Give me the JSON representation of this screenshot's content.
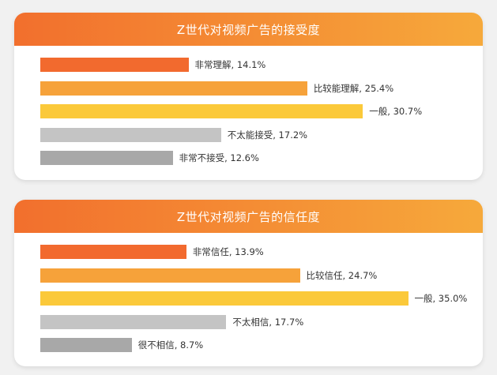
{
  "chart_data": [
    {
      "type": "bar",
      "orientation": "horizontal",
      "title": "Z世代对视频广告的接受度",
      "categories": [
        "非常理解",
        "比较能理解",
        "一般",
        "不太能接受",
        "非常不接受"
      ],
      "values": [
        14.1,
        25.4,
        30.7,
        17.2,
        12.6
      ],
      "labels": [
        "非常理解, 14.1%",
        "比较能理解, 25.4%",
        "一般, 30.7%",
        "不太能接受, 17.2%",
        "非常不接受, 12.6%"
      ],
      "colors": [
        "#f26a2e",
        "#f6a23a",
        "#fbc93a",
        "#c4c4c4",
        "#a8a8a8"
      ],
      "unit": "%",
      "legend": "none",
      "grid": false
    },
    {
      "type": "bar",
      "orientation": "horizontal",
      "title": "Z世代对视频广告的信任度",
      "categories": [
        "非常信任",
        "比较信任",
        "一般",
        "不太相信",
        "很不相信"
      ],
      "values": [
        13.9,
        24.7,
        35.0,
        17.7,
        8.7
      ],
      "labels": [
        "非常信任, 13.9%",
        "比较信任, 24.7%",
        "一般, 35.0%",
        "不太相信, 17.7%",
        "很不相信, 8.7%"
      ],
      "colors": [
        "#f26a2e",
        "#f6a23a",
        "#fbc93a",
        "#c4c4c4",
        "#a8a8a8"
      ],
      "unit": "%",
      "legend": "none",
      "grid": false
    }
  ]
}
